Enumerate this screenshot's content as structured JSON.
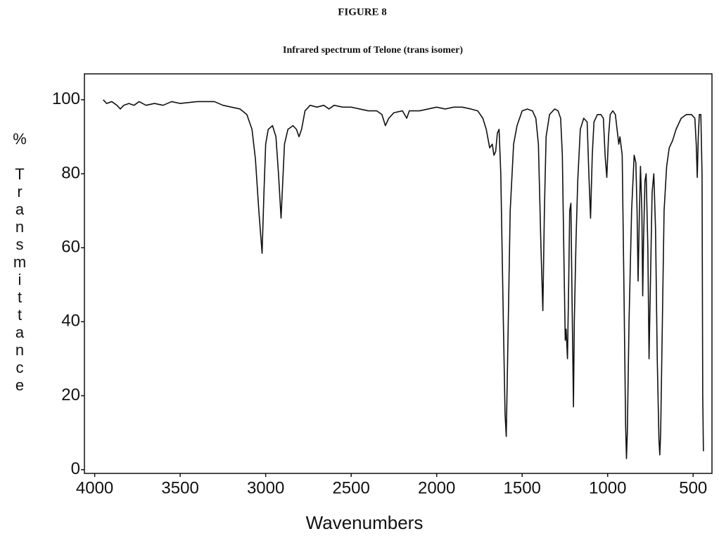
{
  "chart_data": {
    "type": "line",
    "title": "FIGURE 8",
    "subtitle": "Infrared spectrum of Telone (trans isomer)",
    "x_label": "Wavenumbers",
    "y_label": "% Transmittance",
    "color": "#111111",
    "xlim": [
      4060,
      390
    ],
    "ylim": [
      -1,
      107
    ],
    "xticks": [
      4000,
      3500,
      3000,
      2500,
      2000,
      1500,
      1000,
      500
    ],
    "yticks": [
      0,
      20,
      40,
      60,
      80,
      100
    ],
    "grid": false,
    "x": [
      3950,
      3930,
      3900,
      3870,
      3850,
      3830,
      3800,
      3770,
      3740,
      3700,
      3650,
      3600,
      3550,
      3500,
      3400,
      3300,
      3250,
      3200,
      3150,
      3110,
      3080,
      3060,
      3040,
      3021,
      3010,
      3000,
      2985,
      2960,
      2940,
      2925,
      2910,
      2900,
      2890,
      2870,
      2840,
      2820,
      2805,
      2790,
      2770,
      2740,
      2700,
      2660,
      2630,
      2600,
      2550,
      2500,
      2450,
      2400,
      2350,
      2320,
      2300,
      2280,
      2250,
      2200,
      2175,
      2160,
      2100,
      2050,
      2000,
      1950,
      1900,
      1850,
      1800,
      1760,
      1730,
      1710,
      1690,
      1675,
      1665,
      1655,
      1645,
      1635,
      1625,
      1610,
      1600,
      1593,
      1585,
      1570,
      1550,
      1530,
      1500,
      1470,
      1440,
      1420,
      1405,
      1390,
      1379,
      1370,
      1360,
      1340,
      1310,
      1290,
      1275,
      1265,
      1255,
      1248,
      1243,
      1235,
      1228,
      1222,
      1215,
      1208,
      1200,
      1195,
      1185,
      1175,
      1160,
      1140,
      1120,
      1110,
      1100,
      1090,
      1080,
      1060,
      1040,
      1025,
      1015,
      1005,
      995,
      985,
      970,
      955,
      945,
      935,
      928,
      915,
      905,
      895,
      890,
      885,
      875,
      860,
      845,
      835,
      828,
      822,
      815,
      808,
      800,
      795,
      790,
      782,
      775,
      765,
      758,
      750,
      740,
      730,
      720,
      710,
      700,
      695,
      690,
      680,
      670,
      655,
      640,
      620,
      600,
      570,
      540,
      510,
      490,
      482,
      476,
      470,
      464,
      455,
      448,
      444,
      440
    ],
    "values": [
      100,
      99,
      99.5,
      98.5,
      97.5,
      98.5,
      99,
      98.5,
      99.5,
      98.5,
      99,
      98.5,
      99.5,
      99,
      99.5,
      99.5,
      98.5,
      98,
      97.5,
      96,
      92,
      84,
      70,
      58.5,
      75,
      88,
      92,
      93,
      90,
      80,
      68,
      78,
      88,
      92,
      93,
      92,
      90,
      92,
      97,
      98.5,
      98,
      98.5,
      97.5,
      98.5,
      98,
      98,
      97.5,
      97,
      97,
      96,
      93,
      95,
      96.5,
      97,
      95,
      97,
      97,
      97.5,
      98,
      97.5,
      98,
      98,
      97.5,
      97,
      95,
      92,
      87,
      88,
      85,
      86,
      91,
      92,
      80,
      40,
      15,
      9,
      30,
      70,
      88,
      93,
      97,
      97.5,
      97,
      95,
      88,
      60,
      43,
      70,
      90,
      96,
      97.5,
      97,
      95,
      85,
      55,
      35,
      38,
      30,
      50,
      70,
      72,
      45,
      17,
      40,
      62,
      78,
      92,
      95,
      94,
      80,
      68,
      85,
      94,
      96,
      96,
      95,
      85,
      79,
      90,
      96,
      97,
      96,
      92,
      88,
      90,
      85,
      50,
      12,
      3,
      10,
      40,
      70,
      85,
      83,
      70,
      51,
      68,
      82,
      70,
      47,
      62,
      78,
      80,
      60,
      30,
      50,
      75,
      80,
      65,
      30,
      8,
      4,
      10,
      40,
      70,
      82,
      87,
      89,
      92,
      95,
      96,
      96,
      95,
      88,
      79,
      90,
      96,
      96,
      80,
      20,
      5
    ]
  }
}
